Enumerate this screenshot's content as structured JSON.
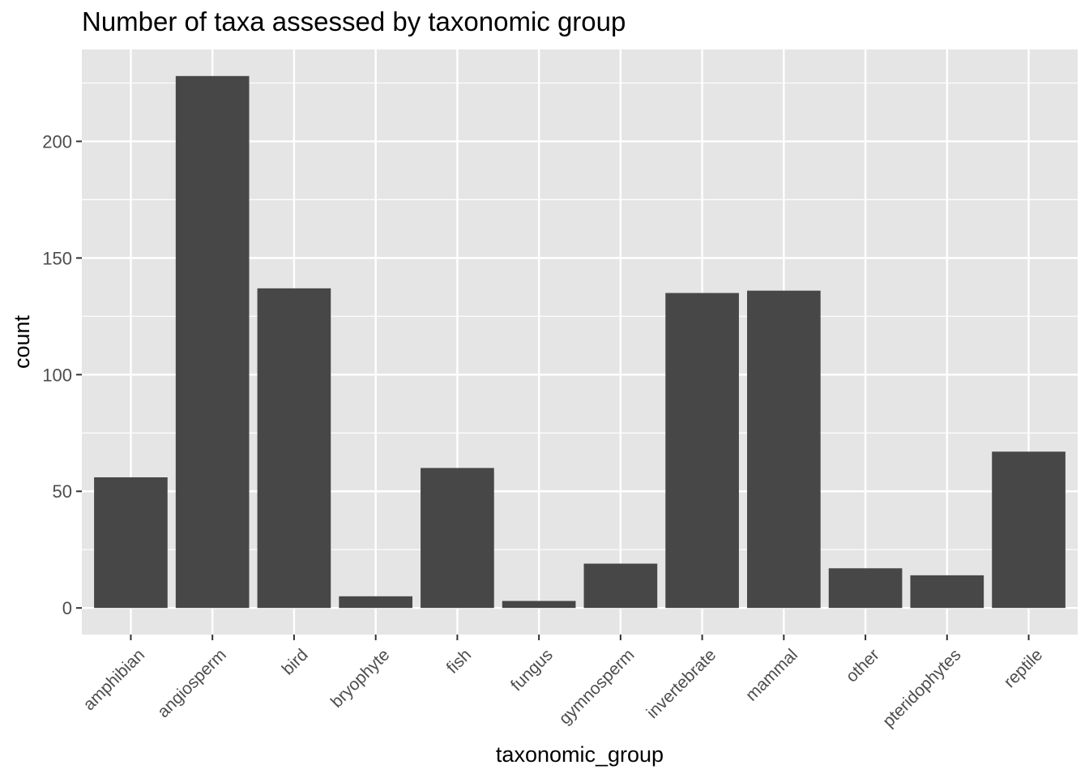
{
  "chart_data": {
    "type": "bar",
    "title": "Number of taxa assessed by taxonomic group",
    "xlabel": "taxonomic_group",
    "ylabel": "count",
    "categories": [
      "amphibian",
      "angiosperm",
      "bird",
      "bryophyte",
      "fish",
      "fungus",
      "gymnosperm",
      "invertebrate",
      "mammal",
      "other",
      "pteridophytes",
      "reptile"
    ],
    "values": [
      56,
      228,
      137,
      5,
      60,
      3,
      19,
      135,
      136,
      17,
      14,
      67
    ],
    "yticks": [
      0,
      50,
      100,
      150,
      200
    ],
    "ylim": [
      -11.4,
      239.4
    ],
    "grid": true,
    "legend": "none",
    "colors": {
      "bar": "#474747",
      "panel": "#e5e5e5",
      "grid": "#ffffff",
      "tick_text": "#4d4d4d",
      "axis_title": "#000000"
    }
  }
}
